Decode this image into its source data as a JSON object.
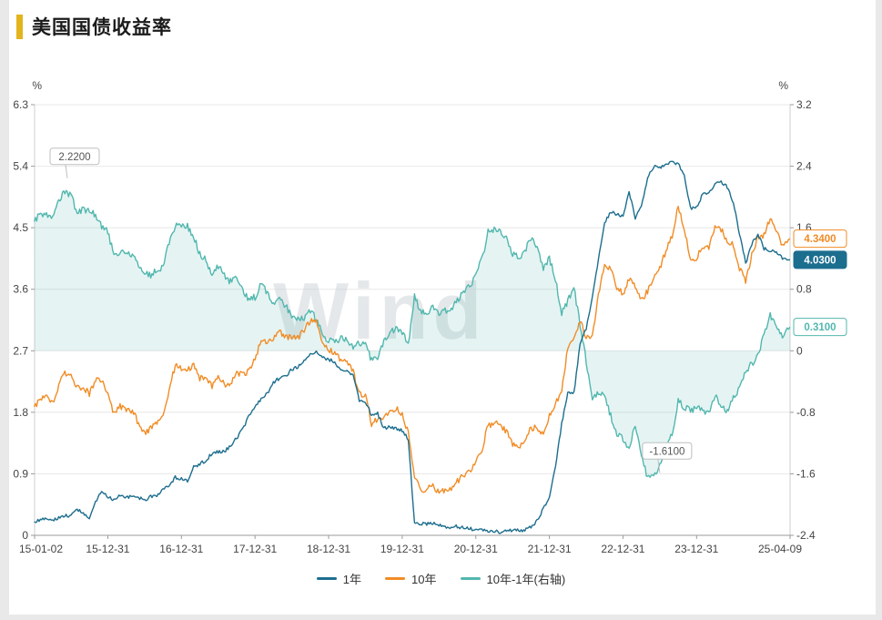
{
  "page": {
    "title": "美国国债收益率",
    "accent_color": "#e3b41c",
    "watermark": "Wind"
  },
  "chart_data": {
    "type": "line",
    "title": "美国国债收益率",
    "legend_position": "bottom",
    "grid": "horizontal",
    "left_axis": {
      "unit": "%",
      "min": 0,
      "max": 6.3,
      "ticks": [
        0,
        0.9,
        1.8,
        2.7,
        3.6,
        4.5,
        5.4,
        6.3
      ]
    },
    "right_axis": {
      "unit": "%",
      "min": -2.4,
      "max": 3.2,
      "ticks": [
        -2.4,
        -1.6,
        -0.8,
        0,
        0.8,
        1.6,
        2.4,
        3.2
      ]
    },
    "x_range": [
      2015.005,
      2025.27
    ],
    "x_axis": {
      "labels": [
        {
          "t": 2015.005,
          "label": "15-01-02"
        },
        {
          "t": 2016.0,
          "label": "15-12-31"
        },
        {
          "t": 2017.0,
          "label": "16-12-31"
        },
        {
          "t": 2018.0,
          "label": "17-12-31"
        },
        {
          "t": 2019.0,
          "label": "18-12-31"
        },
        {
          "t": 2020.0,
          "label": "19-12-31"
        },
        {
          "t": 2021.0,
          "label": "20-12-31"
        },
        {
          "t": 2022.0,
          "label": "21-12-31"
        },
        {
          "t": 2023.0,
          "label": "22-12-31"
        },
        {
          "t": 2024.0,
          "label": "23-12-31"
        },
        {
          "t": 2025.27,
          "label": "25-04-09"
        }
      ]
    },
    "sampling": "monthly approximations 2015-01 .. 2025-04, last point = 2025-04-09",
    "series": [
      {
        "name": "1年",
        "axis": "left",
        "color": "#1c6e8e",
        "badge_style": "solid",
        "last_value": 4.03,
        "last_label": "4.0300",
        "values": [
          0.2,
          0.22,
          0.25,
          0.23,
          0.26,
          0.28,
          0.3,
          0.38,
          0.33,
          0.26,
          0.48,
          0.65,
          0.55,
          0.53,
          0.59,
          0.55,
          0.59,
          0.55,
          0.51,
          0.57,
          0.59,
          0.66,
          0.74,
          0.85,
          0.82,
          0.8,
          1.0,
          1.04,
          1.1,
          1.2,
          1.22,
          1.23,
          1.3,
          1.42,
          1.56,
          1.74,
          1.88,
          2.0,
          2.08,
          2.24,
          2.3,
          2.33,
          2.43,
          2.46,
          2.56,
          2.64,
          2.7,
          2.61,
          2.57,
          2.54,
          2.4,
          2.39,
          2.34,
          1.98,
          1.96,
          1.76,
          1.78,
          1.57,
          1.58,
          1.57,
          1.53,
          1.41,
          0.17,
          0.16,
          0.17,
          0.17,
          0.15,
          0.13,
          0.12,
          0.13,
          0.11,
          0.1,
          0.08,
          0.07,
          0.07,
          0.06,
          0.05,
          0.07,
          0.07,
          0.07,
          0.08,
          0.12,
          0.21,
          0.39,
          0.55,
          1.01,
          1.63,
          2.1,
          2.08,
          2.8,
          3.03,
          3.5,
          4.05,
          4.56,
          4.74,
          4.69,
          4.68,
          5.02,
          4.64,
          4.8,
          5.22,
          5.4,
          5.37,
          5.42,
          5.46,
          5.44,
          5.25,
          4.79,
          4.8,
          4.99,
          5.03,
          5.13,
          5.18,
          5.09,
          4.87,
          4.41,
          3.98,
          4.27,
          4.41,
          4.19,
          4.17,
          4.14,
          4.05,
          4.03
        ]
      },
      {
        "name": "10年",
        "axis": "left",
        "color": "#f18c25",
        "badge_style": "outline",
        "last_value": 4.34,
        "last_label": "4.3400",
        "values": [
          1.88,
          2.0,
          2.04,
          1.94,
          2.2,
          2.36,
          2.32,
          2.17,
          2.17,
          2.07,
          2.26,
          2.27,
          2.09,
          1.78,
          1.89,
          1.81,
          1.83,
          1.64,
          1.5,
          1.56,
          1.63,
          1.76,
          2.14,
          2.49,
          2.43,
          2.42,
          2.48,
          2.3,
          2.28,
          2.19,
          2.32,
          2.21,
          2.2,
          2.36,
          2.35,
          2.4,
          2.58,
          2.86,
          2.84,
          2.87,
          2.98,
          2.91,
          2.89,
          2.89,
          3.0,
          3.15,
          3.12,
          2.83,
          2.71,
          2.68,
          2.55,
          2.53,
          2.4,
          2.07,
          2.06,
          1.63,
          1.7,
          1.71,
          1.81,
          1.86,
          1.76,
          1.5,
          0.87,
          0.66,
          0.67,
          0.73,
          0.62,
          0.65,
          0.68,
          0.79,
          0.87,
          0.93,
          1.08,
          1.26,
          1.61,
          1.64,
          1.62,
          1.52,
          1.32,
          1.28,
          1.37,
          1.58,
          1.56,
          1.47,
          1.76,
          1.93,
          2.13,
          2.75,
          2.9,
          3.14,
          2.9,
          2.9,
          3.52,
          3.98,
          3.89,
          3.62,
          3.53,
          3.75,
          3.66,
          3.46,
          3.57,
          3.75,
          3.9,
          4.17,
          4.38,
          4.8,
          4.5,
          4.02,
          4.06,
          4.21,
          4.21,
          4.54,
          4.48,
          4.31,
          4.25,
          3.91,
          3.72,
          4.1,
          4.36,
          4.39,
          4.63,
          4.45,
          4.25,
          4.34
        ]
      },
      {
        "name": "10年-1年(右轴)",
        "axis": "right",
        "color": "#52b7ae",
        "badge_style": "outline",
        "last_value": 0.31,
        "last_label": "0.3100",
        "area_fill_to_zero": true,
        "values_derived_from": "10年 minus 1年"
      }
    ],
    "annotations": [
      {
        "label": "2.2200",
        "t": 2015.45,
        "value": 2.22,
        "axis": "right"
      },
      {
        "label": "-1.6100",
        "t": 2023.5,
        "value": -1.61,
        "axis": "right"
      }
    ],
    "legend": [
      "1年",
      "10年",
      "10年-1年(右轴)"
    ]
  }
}
